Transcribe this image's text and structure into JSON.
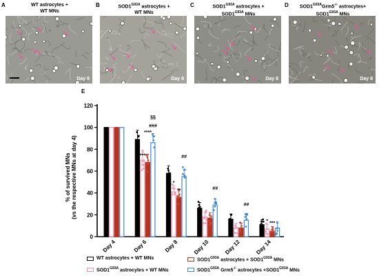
{
  "panels": [
    {
      "letter": "A",
      "title": "WT astrocytes + WT MNs",
      "day": "Day 8",
      "tone": "#9a9a95",
      "scale_bar": true
    },
    {
      "letter": "B",
      "title": "SOD1G93A astrocytes + WT MNs",
      "day": "Day 8",
      "tone": "#a3a39c",
      "scale_bar": false
    },
    {
      "letter": "C",
      "title": "SOD1G93A astrocytes + SOD1G93A MNs",
      "day": "Day 8",
      "tone": "#8e8e88",
      "scale_bar": false
    },
    {
      "letter": "D",
      "title": "SOD1G93AGrm5-/- astrocytes+ SOD1G93A MNs",
      "day": "Day 8",
      "tone": "#86867f",
      "scale_bar": false
    }
  ],
  "panel_e_letter": "E",
  "chart_data": {
    "type": "bar",
    "ylabel": "% of survived MNs (vs the respective MNs at day 4)",
    "ylim": [
      0,
      120
    ],
    "yticks": [
      0,
      20,
      40,
      60,
      80,
      100,
      120
    ],
    "categories": [
      "Day 4",
      "Day 6",
      "Day 8",
      "Day 10",
      "Day 12",
      "Day 14"
    ],
    "series": [
      {
        "name": "WT astrocytes + WT MNs",
        "color": "#000000",
        "fill": "#000000",
        "values": [
          100,
          89,
          58,
          26,
          16,
          11
        ]
      },
      {
        "name": "SOD1G93A astrocytes + WT MNs",
        "color": "#f08fb0",
        "fill": "#ffffff",
        "values": [
          100,
          70,
          41,
          18,
          8,
          7
        ]
      },
      {
        "name": "SOD1G93A astrocytes + SOD1G93A MNs",
        "color": "#b5341f",
        "fill": "#b5341f",
        "values": [
          100,
          68,
          36,
          17,
          8,
          5
        ]
      },
      {
        "name": "SOD1G93A Grm5-/- astrocytes +SOD1G93A MNs",
        "color": "#3d86d8",
        "fill": "#ffffff",
        "values": [
          100,
          86,
          55,
          29,
          15,
          8
        ]
      }
    ],
    "annotations": [
      {
        "category": "Day 6",
        "series": 1,
        "text": "***",
        "y": 73
      },
      {
        "category": "Day 6",
        "series": 2,
        "text": "****",
        "y": 94
      },
      {
        "category": "Day 6",
        "series": 3,
        "text": "###",
        "y": 100
      },
      {
        "category": "Day 6",
        "series": 3,
        "text": "§§",
        "y": 108
      },
      {
        "category": "Day 8",
        "series": 1,
        "text": "*",
        "y": 48
      },
      {
        "category": "Day 8",
        "series": 2,
        "text": "**",
        "y": 41
      },
      {
        "category": "Day 8",
        "series": 3,
        "text": "##",
        "y": 72
      },
      {
        "category": "Day 10",
        "series": 3,
        "text": "##",
        "y": 43
      },
      {
        "category": "Day 12",
        "series": 3,
        "text": "##",
        "y": 28
      },
      {
        "category": "Day 14",
        "series": 1,
        "text": "*",
        "y": 13
      },
      {
        "category": "Day 14",
        "series": 2,
        "text": "***",
        "y": 11
      }
    ]
  }
}
